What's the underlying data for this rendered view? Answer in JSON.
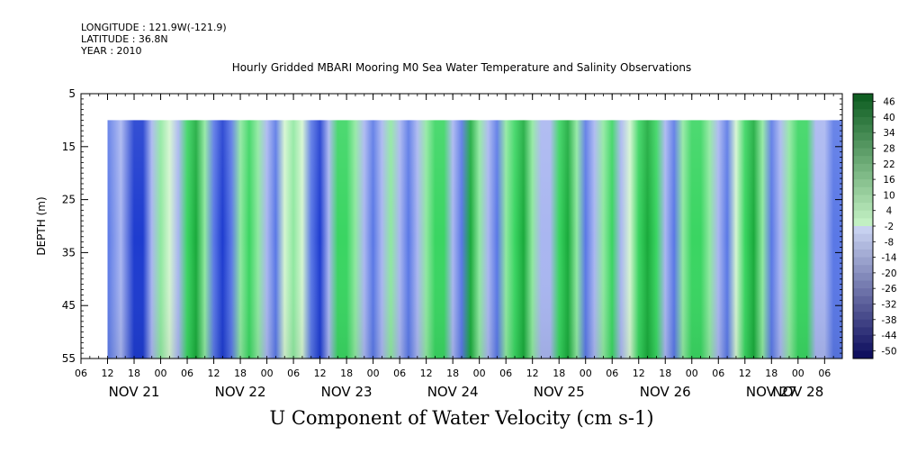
{
  "meta": {
    "longitude": "LONGITUDE : 121.9W(-121.9)",
    "latitude": "LATITUDE : 36.8N",
    "year": "YEAR : 2010"
  },
  "title": "Hourly Gridded MBARI Mooring M0 Sea Water Temperature and Salinity Observations",
  "xlabel": "U Component of Water Velocity (cm s-1)",
  "ylabel": "DEPTH (m)",
  "colors": {
    "neg_strong": "#1e3ccf",
    "neg_mid": "#5a78e6",
    "neg_light": "#a9b6f0",
    "near_zero": "#d4f5d0",
    "pos_light": "#8fe8a0",
    "pos_mid": "#3ad562",
    "pos_strong": "#1aaa3c"
  },
  "chart_data": {
    "type": "heatmap",
    "title": "Hourly Gridded MBARI Mooring M0 Sea Water Temperature and Salinity Observations",
    "xlabel": "U Component of Water Velocity (cm s-1)",
    "ylabel": "DEPTH (m)",
    "x_range_hours": [
      0,
      172
    ],
    "data_start_hour": 6,
    "hour_tick_labels": [
      "06",
      "12",
      "18",
      "00",
      "06",
      "12",
      "18",
      "00",
      "06",
      "12",
      "18",
      "00",
      "06",
      "12",
      "18",
      "00",
      "06",
      "12",
      "18",
      "00",
      "06",
      "12",
      "18",
      "00",
      "06",
      "12",
      "18",
      "00",
      "06"
    ],
    "day_labels": [
      "NOV 21",
      "NOV 22",
      "NOV 23",
      "NOV 24",
      "NOV 25",
      "NOV 26",
      "NOV 27",
      "NOV 28"
    ],
    "y_ticks": [
      5,
      15,
      25,
      35,
      45,
      55
    ],
    "ylim": [
      55,
      5
    ],
    "data_depth_range": [
      10,
      55
    ],
    "colorbar": {
      "labels": [
        "46",
        "40",
        "34",
        "28",
        "22",
        "16",
        "10",
        "4",
        "-2",
        "-8",
        "-14",
        "-20",
        "-26",
        "-32",
        "-38",
        "-44",
        "-50"
      ],
      "range": [
        -50,
        50
      ]
    },
    "bands_hours_values": [
      [
        6,
        -20
      ],
      [
        9,
        -10
      ],
      [
        12,
        -38
      ],
      [
        14,
        -30
      ],
      [
        16,
        -5
      ],
      [
        18,
        8
      ],
      [
        20,
        2
      ],
      [
        22,
        -12
      ],
      [
        24,
        16
      ],
      [
        26,
        30
      ],
      [
        28,
        10
      ],
      [
        30,
        -20
      ],
      [
        32,
        -32
      ],
      [
        34,
        -20
      ],
      [
        36,
        12
      ],
      [
        38,
        22
      ],
      [
        40,
        4
      ],
      [
        42,
        -10
      ],
      [
        44,
        -18
      ],
      [
        46,
        2
      ],
      [
        48,
        10
      ],
      [
        50,
        -2
      ],
      [
        52,
        -26
      ],
      [
        54,
        -30
      ],
      [
        56,
        -10
      ],
      [
        58,
        14
      ],
      [
        60,
        18
      ],
      [
        62,
        8
      ],
      [
        64,
        -14
      ],
      [
        66,
        -20
      ],
      [
        68,
        -6
      ],
      [
        70,
        6
      ],
      [
        72,
        -12
      ],
      [
        74,
        -24
      ],
      [
        76,
        -14
      ],
      [
        78,
        10
      ],
      [
        80,
        20
      ],
      [
        82,
        14
      ],
      [
        84,
        -14
      ],
      [
        86,
        -22
      ],
      [
        88,
        26
      ],
      [
        90,
        8
      ],
      [
        92,
        -6
      ],
      [
        94,
        -20
      ],
      [
        96,
        4
      ],
      [
        98,
        22
      ],
      [
        100,
        28
      ],
      [
        102,
        12
      ],
      [
        104,
        -8
      ],
      [
        106,
        -4
      ],
      [
        108,
        16
      ],
      [
        110,
        24
      ],
      [
        112,
        6
      ],
      [
        114,
        -18
      ],
      [
        116,
        -14
      ],
      [
        118,
        12
      ],
      [
        120,
        14
      ],
      [
        122,
        -4
      ],
      [
        124,
        -2
      ],
      [
        126,
        20
      ],
      [
        128,
        26
      ],
      [
        130,
        18
      ],
      [
        132,
        -6
      ],
      [
        134,
        -18
      ],
      [
        136,
        4
      ],
      [
        138,
        14
      ],
      [
        140,
        22
      ],
      [
        142,
        10
      ],
      [
        144,
        -14
      ],
      [
        146,
        -22
      ],
      [
        148,
        2
      ],
      [
        150,
        16
      ],
      [
        152,
        24
      ],
      [
        154,
        10
      ],
      [
        156,
        -16
      ],
      [
        158,
        -14
      ],
      [
        160,
        4
      ],
      [
        162,
        20
      ],
      [
        164,
        16
      ],
      [
        166,
        -6
      ],
      [
        168,
        -14
      ],
      [
        170,
        -20
      ],
      [
        172,
        -18
      ]
    ]
  }
}
